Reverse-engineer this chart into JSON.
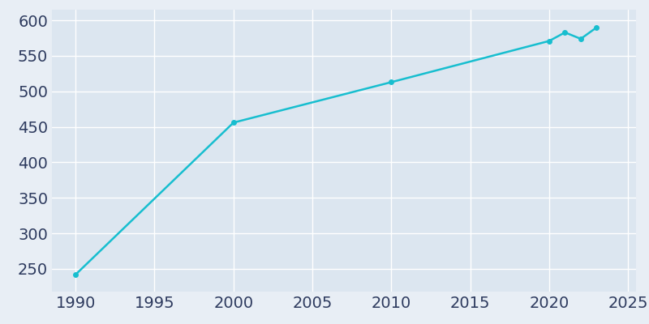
{
  "years": [
    1990,
    2000,
    2010,
    2020,
    2021,
    2022,
    2023
  ],
  "population": [
    242,
    456,
    513,
    571,
    583,
    574,
    590
  ],
  "line_color": "#17becf",
  "marker": "o",
  "marker_size": 4,
  "line_width": 1.8,
  "bg_color": "#e8eef5",
  "plot_bg_color": "#dce6f0",
  "grid_color": "#f0f4f8",
  "tick_color": "#2d3a5e",
  "xlabel": "",
  "ylabel": "",
  "xlim": [
    1988.5,
    2025.5
  ],
  "ylim": [
    218,
    615
  ],
  "xticks": [
    1990,
    1995,
    2000,
    2005,
    2010,
    2015,
    2020,
    2025
  ],
  "yticks": [
    250,
    300,
    350,
    400,
    450,
    500,
    550,
    600
  ],
  "tick_fontsize": 14
}
